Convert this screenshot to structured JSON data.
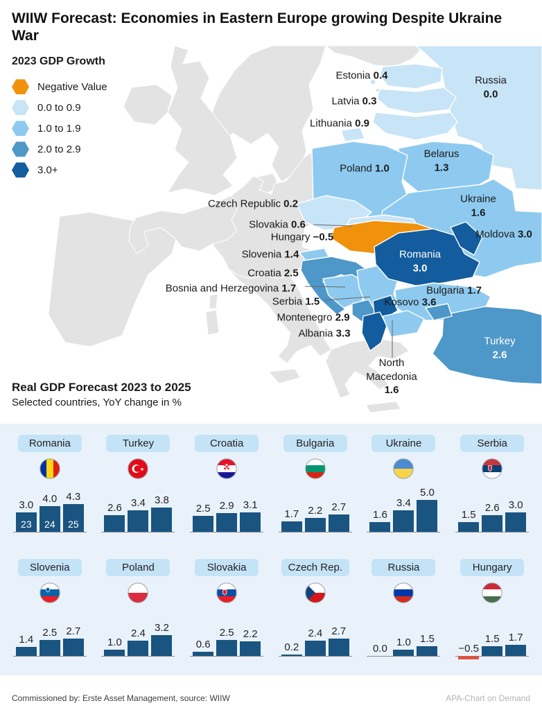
{
  "title": "WIIW Forecast: Economies in Eastern Europe growing Despite Ukraine War",
  "legend": {
    "title": "2023 GDP Growth",
    "items": [
      {
        "label": "Negative Value",
        "color": "#F0920B"
      },
      {
        "label": "0.0 to 0.9",
        "color": "#C8E4F7"
      },
      {
        "label": "1.0 to 1.9",
        "color": "#8ECAEF"
      },
      {
        "label": "2.0 to 2.9",
        "color": "#4E97C9"
      },
      {
        "label": "3.0+",
        "color": "#135C9D"
      }
    ]
  },
  "section": {
    "title": "Real GDP Forecast 2023 to 2025",
    "subtitle": "Selected countries, YoY change in %"
  },
  "colors": {
    "bar": "#1A5480",
    "negative_bar": "#DA5340",
    "panel_bg": "#E9F2FA",
    "pill_bg": "#C5E3F7",
    "land": "#E3E3E3",
    "sea": "#FFFFFF"
  },
  "chart_data": [
    {
      "type": "heatmap",
      "subtype": "choropleth-map-europe",
      "title": "2023 GDP Growth",
      "legend_bins": [
        {
          "label": "Negative Value",
          "range": [
            null,
            0
          ]
        },
        {
          "label": "0.0 to 0.9",
          "range": [
            0.0,
            0.9
          ]
        },
        {
          "label": "1.0 to 1.9",
          "range": [
            1.0,
            1.9
          ]
        },
        {
          "label": "2.0 to 2.9",
          "range": [
            2.0,
            2.9
          ]
        },
        {
          "label": "3.0+",
          "range": [
            3.0,
            null
          ]
        }
      ],
      "regions": [
        {
          "name": "Estonia",
          "value": 0.4
        },
        {
          "name": "Latvia",
          "value": 0.3
        },
        {
          "name": "Lithuania",
          "value": 0.9
        },
        {
          "name": "Russia",
          "value": 0.0
        },
        {
          "name": "Poland",
          "value": 1.0
        },
        {
          "name": "Belarus",
          "value": 1.3
        },
        {
          "name": "Ukraine",
          "value": 1.6
        },
        {
          "name": "Czech Republic",
          "value": 0.2
        },
        {
          "name": "Slovakia",
          "value": 0.6
        },
        {
          "name": "Hungary",
          "value": -0.5
        },
        {
          "name": "Moldova",
          "value": 3.0
        },
        {
          "name": "Slovenia",
          "value": 1.4
        },
        {
          "name": "Romania",
          "value": 3.0
        },
        {
          "name": "Croatia",
          "value": 2.5
        },
        {
          "name": "Bosnia and Herzegovina",
          "value": 1.7
        },
        {
          "name": "Serbia",
          "value": 1.5
        },
        {
          "name": "Kosovo",
          "value": 3.6
        },
        {
          "name": "Montenegro",
          "value": 2.9
        },
        {
          "name": "Albania",
          "value": 3.3
        },
        {
          "name": "North Macedonia",
          "value": 1.6
        },
        {
          "name": "Bulgaria",
          "value": 1.7
        },
        {
          "name": "Turkey",
          "value": 2.6
        }
      ]
    },
    {
      "type": "bar",
      "title": "Real GDP Forecast 2023 to 2025",
      "subtitle": "Selected countries, YoY change in %",
      "categories": [
        "23",
        "24",
        "25"
      ],
      "ylim": [
        -0.5,
        5.0
      ],
      "series": [
        {
          "name": "Romania",
          "flag": "romania-flag-icon",
          "values": [
            3.0,
            4.0,
            4.3
          ],
          "show_year_labels": true
        },
        {
          "name": "Turkey",
          "flag": "turkey-flag-icon",
          "values": [
            2.6,
            3.4,
            3.8
          ]
        },
        {
          "name": "Croatia",
          "flag": "croatia-flag-icon",
          "values": [
            2.5,
            2.9,
            3.1
          ]
        },
        {
          "name": "Bulgaria",
          "flag": "bulgaria-flag-icon",
          "values": [
            1.7,
            2.2,
            2.7
          ]
        },
        {
          "name": "Ukraine",
          "flag": "ukraine-flag-icon",
          "values": [
            1.6,
            3.4,
            5.0
          ]
        },
        {
          "name": "Serbia",
          "flag": "serbia-flag-icon",
          "values": [
            1.5,
            2.6,
            3.0
          ]
        },
        {
          "name": "Slovenia",
          "flag": "slovenia-flag-icon",
          "values": [
            1.4,
            2.5,
            2.7
          ]
        },
        {
          "name": "Poland",
          "flag": "poland-flag-icon",
          "values": [
            1.0,
            2.4,
            3.2
          ]
        },
        {
          "name": "Slovakia",
          "flag": "slovakia-flag-icon",
          "values": [
            0.6,
            2.5,
            2.2
          ]
        },
        {
          "name": "Czech Rep.",
          "flag": "czech-flag-icon",
          "values": [
            0.2,
            2.4,
            2.7
          ]
        },
        {
          "name": "Russia",
          "flag": "russia-flag-icon",
          "values": [
            0.0,
            1.0,
            1.5
          ]
        },
        {
          "name": "Hungary",
          "flag": "hungary-flag-icon",
          "values": [
            -0.5,
            1.5,
            1.7
          ]
        }
      ]
    }
  ],
  "footer": {
    "left": "Commissioned by: Erste Asset Management, source: WIIW",
    "right": "APA-Chart on Demand"
  }
}
